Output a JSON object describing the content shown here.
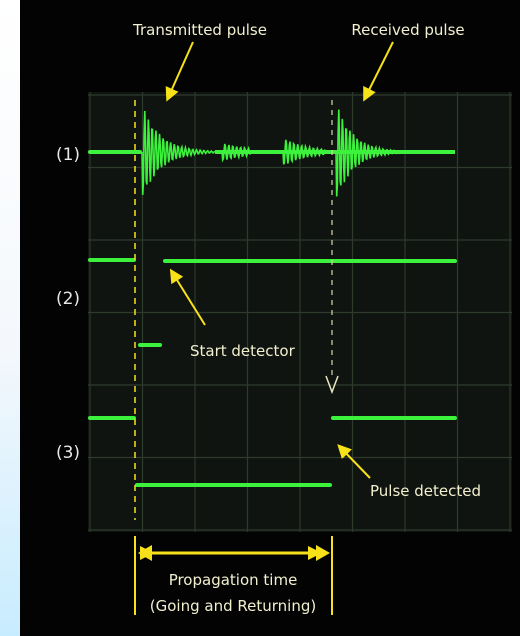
{
  "labels": {
    "transmitted": "Transmitted pulse",
    "received": "Received pulse",
    "start": "Start detector",
    "detected": "Pulse detected",
    "propagation": "Propagation time",
    "propagation_note": "(Going and Returning)"
  },
  "channels": [
    "(1)",
    "(2)",
    "(3)"
  ]
}
